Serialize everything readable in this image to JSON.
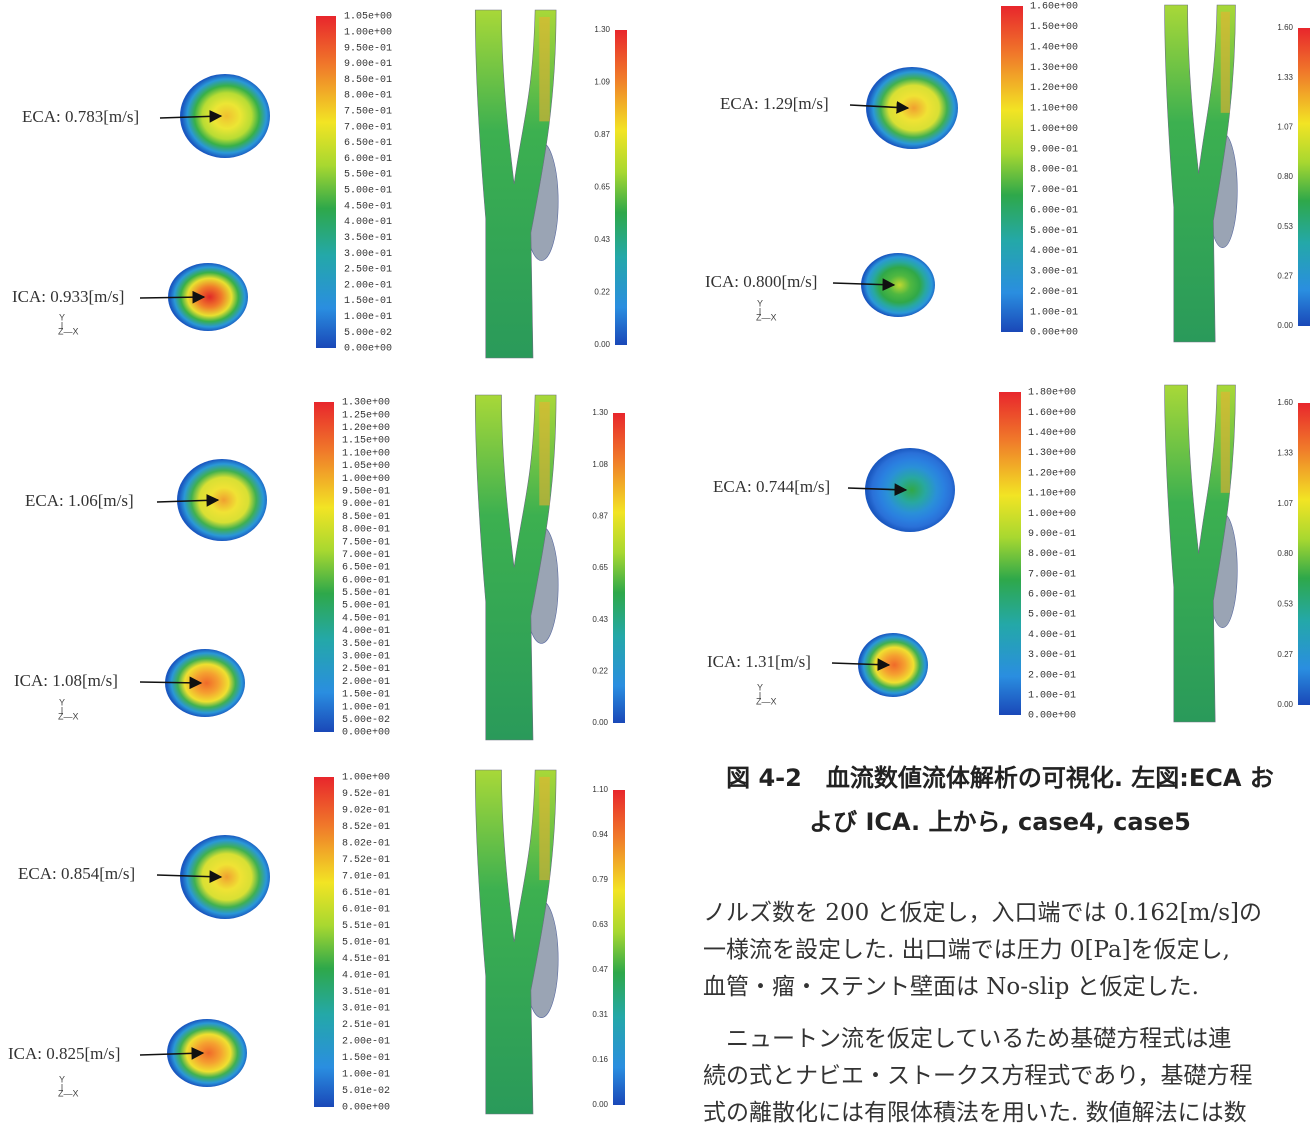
{
  "figure": {
    "panels": [
      {
        "eca_label": "ECA: 0.783[m/s]",
        "ica_label": "ICA: 0.933[m/s]",
        "axis_y": "Y",
        "axis_x": "Z—X",
        "legend_ticks": [
          "1.05e+00",
          "1.00e+00",
          "9.50e-01",
          "9.00e-01",
          "8.50e-01",
          "8.00e-01",
          "7.50e-01",
          "7.00e-01",
          "6.50e-01",
          "6.00e-01",
          "5.50e-01",
          "5.00e-01",
          "4.50e-01",
          "4.00e-01",
          "3.50e-01",
          "3.00e-01",
          "2.50e-01",
          "2.00e-01",
          "1.50e-01",
          "1.00e-01",
          "5.00e-02",
          "0.00e+00"
        ],
        "vessel_ticks": [
          "1.30",
          "1.09",
          "0.87",
          "0.65",
          "0.43",
          "0.22",
          "0.00"
        ]
      },
      {
        "eca_label": "ECA: 1.06[m/s]",
        "ica_label": "ICA: 1.08[m/s]",
        "axis_y": "Y",
        "axis_x": "Z—X",
        "legend_ticks": [
          "1.30e+00",
          "1.25e+00",
          "1.20e+00",
          "1.15e+00",
          "1.10e+00",
          "1.05e+00",
          "1.00e+00",
          "9.50e-01",
          "9.00e-01",
          "8.50e-01",
          "8.00e-01",
          "7.50e-01",
          "7.00e-01",
          "6.50e-01",
          "6.00e-01",
          "5.50e-01",
          "5.00e-01",
          "4.50e-01",
          "4.00e-01",
          "3.50e-01",
          "3.00e-01",
          "2.50e-01",
          "2.00e-01",
          "1.50e-01",
          "1.00e-01",
          "5.00e-02",
          "0.00e+00"
        ],
        "vessel_ticks": [
          "1.30",
          "1.08",
          "0.87",
          "0.65",
          "0.43",
          "0.22",
          "0.00"
        ]
      },
      {
        "eca_label": "ECA: 0.854[m/s]",
        "ica_label": "ICA: 0.825[m/s]",
        "axis_y": "Y",
        "axis_x": "Z—X",
        "legend_ticks": [
          "1.00e+00",
          "9.52e-01",
          "9.02e-01",
          "8.52e-01",
          "8.02e-01",
          "7.52e-01",
          "7.01e-01",
          "6.51e-01",
          "6.01e-01",
          "5.51e-01",
          "5.01e-01",
          "4.51e-01",
          "4.01e-01",
          "3.51e-01",
          "3.01e-01",
          "2.51e-01",
          "2.00e-01",
          "1.50e-01",
          "1.00e-01",
          "5.01e-02",
          "0.00e+00"
        ],
        "vessel_ticks": [
          "1.10",
          "0.94",
          "0.79",
          "0.63",
          "0.47",
          "0.31",
          "0.16",
          "0.00"
        ]
      },
      {
        "eca_label": "ECA: 1.29[m/s]",
        "ica_label": "ICA: 0.800[m/s]",
        "axis_y": "Y",
        "axis_x": "Z—X",
        "legend_ticks": [
          "1.60e+00",
          "1.50e+00",
          "1.40e+00",
          "1.30e+00",
          "1.20e+00",
          "1.10e+00",
          "1.00e+00",
          "9.00e-01",
          "8.00e-01",
          "7.00e-01",
          "6.00e-01",
          "5.00e-01",
          "4.00e-01",
          "3.00e-01",
          "2.00e-01",
          "1.00e-01",
          "0.00e+00"
        ],
        "vessel_ticks": [
          "1.60",
          "1.33",
          "1.07",
          "0.80",
          "0.53",
          "0.27",
          "0.00"
        ]
      },
      {
        "eca_label": "ECA: 0.744[m/s]",
        "ica_label": "ICA: 1.31[m/s]",
        "axis_y": "Y",
        "axis_x": "Z—X",
        "legend_ticks": [
          "1.80e+00",
          "1.60e+00",
          "1.40e+00",
          "1.30e+00",
          "1.20e+00",
          "1.10e+00",
          "1.00e+00",
          "9.00e-01",
          "8.00e-01",
          "7.00e-01",
          "6.00e-01",
          "5.00e-01",
          "4.00e-01",
          "3.00e-01",
          "2.00e-01",
          "1.00e-01",
          "0.00e+00"
        ],
        "vessel_ticks": [
          "1.60",
          "1.33",
          "1.07",
          "0.80",
          "0.53",
          "0.27",
          "0.00"
        ]
      }
    ],
    "caption": [
      "図 4-2　血流数値流体解析の可視化. 左図:ECA お",
      "よび ICA. 上から, case4, case5"
    ]
  },
  "body": {
    "lines": [
      "ノルズ数を 200 と仮定し，入口端では 0.162[m/s]の",
      "一様流を設定した. 出口端では圧力 0[Pa]を仮定し,",
      "血管・瘤・ステント壁面は No-slip と仮定した.",
      "　ニュートン流を仮定しているため基礎方程式は連",
      "続の式とナビエ・ストークス方程式であり，基礎方程",
      "式の離散化には有限体積法を用いた. 数値解法には数"
    ]
  }
}
